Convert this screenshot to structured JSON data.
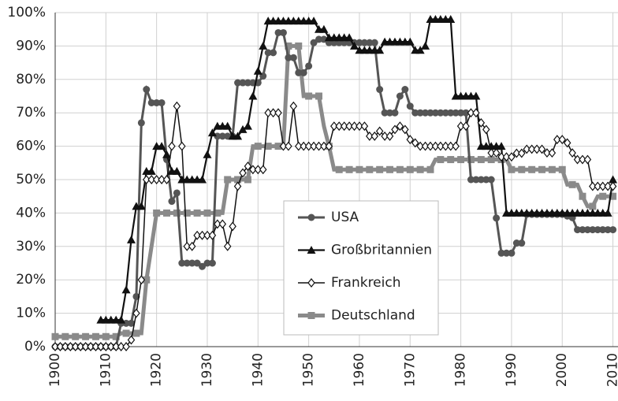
{
  "chart_data": {
    "type": "line",
    "x": [
      1900,
      1901,
      1902,
      1903,
      1904,
      1905,
      1906,
      1907,
      1908,
      1909,
      1910,
      1911,
      1912,
      1913,
      1914,
      1915,
      1916,
      1917,
      1918,
      1919,
      1920,
      1921,
      1922,
      1923,
      1924,
      1925,
      1926,
      1927,
      1928,
      1929,
      1930,
      1931,
      1932,
      1933,
      1934,
      1935,
      1936,
      1937,
      1938,
      1939,
      1940,
      1941,
      1942,
      1943,
      1944,
      1945,
      1946,
      1947,
      1948,
      1949,
      1950,
      1951,
      1952,
      1953,
      1954,
      1955,
      1956,
      1957,
      1958,
      1959,
      1960,
      1961,
      1962,
      1963,
      1964,
      1965,
      1966,
      1967,
      1968,
      1969,
      1970,
      1971,
      1972,
      1973,
      1974,
      1975,
      1976,
      1977,
      1978,
      1979,
      1980,
      1981,
      1982,
      1983,
      1984,
      1985,
      1986,
      1987,
      1988,
      1989,
      1990,
      1991,
      1992,
      1993,
      1994,
      1995,
      1996,
      1997,
      1998,
      1999,
      2000,
      2001,
      2002,
      2003,
      2004,
      2005,
      2006,
      2007,
      2008,
      2009,
      2010
    ],
    "series": [
      {
        "name": "USA",
        "color": "#555555",
        "marker": "circle",
        "values": [
          0,
          0,
          0,
          0,
          0,
          0,
          0,
          0,
          0,
          0,
          0,
          0,
          0,
          7,
          7,
          7,
          15,
          67,
          77,
          73,
          73,
          73,
          56,
          43.5,
          46,
          25,
          25,
          25,
          25,
          24,
          25,
          25,
          63,
          63,
          63,
          63,
          79,
          79,
          79,
          79,
          79,
          81,
          88,
          88,
          94,
          94,
          86.5,
          86.5,
          82,
          82,
          84,
          91,
          92,
          92,
          91,
          91,
          91,
          91,
          91,
          91,
          91,
          91,
          91,
          91,
          77,
          70,
          70,
          70,
          75,
          77,
          72,
          70,
          70,
          70,
          70,
          70,
          70,
          70,
          70,
          70,
          70,
          70,
          50,
          50,
          50,
          50,
          50,
          38.5,
          28,
          28,
          28,
          31,
          31,
          39.6,
          39.6,
          39.6,
          39.6,
          39.6,
          39.6,
          39.6,
          39.6,
          39.1,
          38.6,
          35,
          35,
          35,
          35,
          35,
          35,
          35,
          35
        ]
      },
      {
        "name": "Großbritannien",
        "color": "#111111",
        "marker": "triangle",
        "values": [
          null,
          null,
          null,
          null,
          null,
          null,
          null,
          null,
          null,
          8,
          8,
          8,
          8,
          8,
          17,
          32,
          42,
          42,
          52.5,
          52.5,
          60,
          60,
          57.5,
          52.5,
          52.5,
          50,
          50,
          50,
          50,
          50,
          57.5,
          64,
          66,
          66,
          66,
          63,
          63,
          65,
          66,
          75,
          82.5,
          90,
          97.5,
          97.5,
          97.5,
          97.5,
          97.5,
          97.5,
          97.5,
          97.5,
          97.5,
          97.5,
          95,
          95,
          92.5,
          92.5,
          92.5,
          92.5,
          92.5,
          90,
          88.75,
          88.75,
          88.75,
          88.75,
          88.75,
          91.25,
          91.25,
          91.25,
          91.25,
          91.25,
          91.25,
          88.75,
          88.75,
          90,
          98,
          98,
          98,
          98,
          98,
          75,
          75,
          75,
          75,
          75,
          60,
          60,
          60,
          60,
          60,
          40,
          40,
          40,
          40,
          40,
          40,
          40,
          40,
          40,
          40,
          40,
          40,
          40,
          40,
          40,
          40,
          40,
          40,
          40,
          40,
          40,
          50
        ]
      },
      {
        "name": "Frankreich",
        "color": "#111111",
        "marker": "diamond",
        "values": [
          0,
          0,
          0,
          0,
          0,
          0,
          0,
          0,
          0,
          0,
          0,
          0,
          0,
          0,
          0,
          2,
          10,
          20,
          50,
          50,
          50,
          50,
          50,
          60,
          72,
          60,
          30,
          30,
          33.3,
          33.3,
          33.3,
          33.3,
          36.7,
          36.7,
          30,
          36,
          48,
          52,
          54,
          53,
          53,
          53,
          70,
          70,
          70,
          60,
          60,
          72,
          60,
          60,
          60,
          60,
          60,
          60,
          60,
          66,
          66,
          66,
          66,
          66,
          66,
          66,
          63,
          63,
          64.5,
          63,
          63,
          65,
          66,
          65,
          62,
          61,
          60,
          60,
          60,
          60,
          60,
          60,
          60,
          60,
          66,
          66,
          70,
          70,
          67,
          65,
          58,
          58,
          56.8,
          56.8,
          56.8,
          57.9,
          57.9,
          59.1,
          59.1,
          59.1,
          59.1,
          58,
          58,
          62,
          62,
          61,
          58,
          56,
          56,
          56,
          48,
          48,
          48,
          48,
          48
        ]
      },
      {
        "name": "Deutschland",
        "color": "#8a8a8a",
        "marker": "square",
        "values": [
          3,
          3,
          3,
          3,
          3,
          3,
          3,
          3,
          3,
          3,
          3,
          3,
          3,
          4,
          4,
          4,
          4,
          4,
          20,
          30,
          40,
          40,
          40,
          40,
          40,
          40,
          40,
          40,
          40,
          40,
          40,
          40,
          40,
          40,
          50,
          50,
          50,
          50,
          50,
          60,
          60,
          60,
          60,
          60,
          60,
          60,
          90,
          90,
          90,
          75,
          75,
          75,
          75,
          66,
          60,
          53,
          53,
          53,
          53,
          53,
          53,
          53,
          53,
          53,
          53,
          53,
          53,
          53,
          53,
          53,
          53,
          53,
          53,
          53,
          53,
          56,
          56,
          56,
          56,
          56,
          56,
          56,
          56,
          56,
          56,
          56,
          56,
          56,
          56,
          56,
          53,
          53,
          53,
          53,
          53,
          53,
          53,
          53,
          53,
          53,
          53,
          48.5,
          48.5,
          48.5,
          45,
          42,
          42,
          45,
          45,
          45,
          45
        ]
      }
    ],
    "xlim": [
      1900,
      2011
    ],
    "xticks": [
      1900,
      1910,
      1920,
      1930,
      1940,
      1950,
      1960,
      1970,
      1980,
      1990,
      2000,
      2010
    ],
    "ylim": [
      0,
      100
    ],
    "yticks": [
      {
        "value": 0,
        "label": "0%"
      },
      {
        "value": 10,
        "label": "10%"
      },
      {
        "value": 20,
        "label": "20%"
      },
      {
        "value": 30,
        "label": "30%"
      },
      {
        "value": 40,
        "label": "40%"
      },
      {
        "value": 50,
        "label": "50%"
      },
      {
        "value": 60,
        "label": "60%"
      },
      {
        "value": 70,
        "label": "70%"
      },
      {
        "value": 80,
        "label": "80%"
      },
      {
        "value": 90,
        "label": "90%"
      },
      {
        "value": 100,
        "label": "100%"
      }
    ],
    "grid": true,
    "legend": "center"
  }
}
